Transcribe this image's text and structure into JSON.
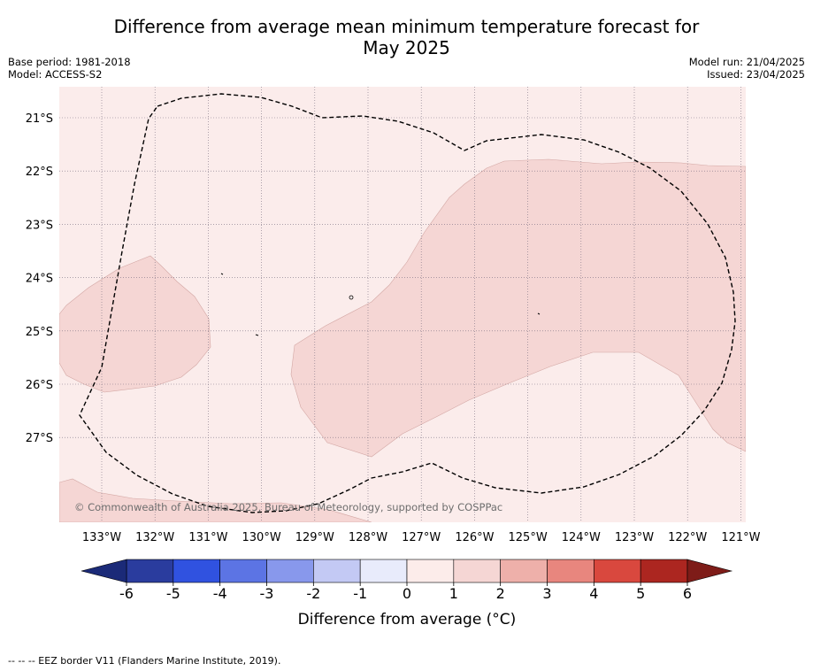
{
  "title_line1": "Difference from average mean minimum temperature forecast for",
  "title_line2": "May 2025",
  "info_left": {
    "base_period": "Base period: 1981-2018",
    "model": "Model: ACCESS-S2"
  },
  "info_right": {
    "model_run": "Model run: 21/04/2025",
    "issued": "Issued: 23/04/2025"
  },
  "map": {
    "lon_ticks": [
      "133°W",
      "132°W",
      "131°W",
      "130°W",
      "129°W",
      "128°W",
      "127°W",
      "126°W",
      "125°W",
      "124°W",
      "123°W",
      "122°W",
      "121°W"
    ],
    "lat_ticks": [
      "21°S",
      "22°S",
      "23°S",
      "24°S",
      "25°S",
      "26°S",
      "27°S"
    ],
    "background_category": "0 to 1",
    "shaded_category": "1 to 2",
    "copyright": "© Commonwealth of Australia 2025, Bureau of Meteorology, supported by COSPPac"
  },
  "colorbar": {
    "label": "Difference from average (°C)",
    "ticks": [
      "-6",
      "-5",
      "-4",
      "-3",
      "-2",
      "-1",
      "0",
      "1",
      "2",
      "3",
      "4",
      "5",
      "6"
    ],
    "colors": [
      "#2a3c9e",
      "#3052e0",
      "#5c74e4",
      "#8898ec",
      "#c3c9f4",
      "#e8ebfb",
      "#fcecea",
      "#f5d6d4",
      "#eeb0aa",
      "#e8867e",
      "#d9483e",
      "#ac2620"
    ],
    "low_extend_color": "#1b2a78",
    "high_extend_color": "#7e1c18",
    "map_fill_background": "#fbeceb",
    "map_fill_shaded": "#f5d6d4"
  },
  "footnote": "-- -- -- EEZ border V11 (Flanders Marine Institute, 2019)."
}
